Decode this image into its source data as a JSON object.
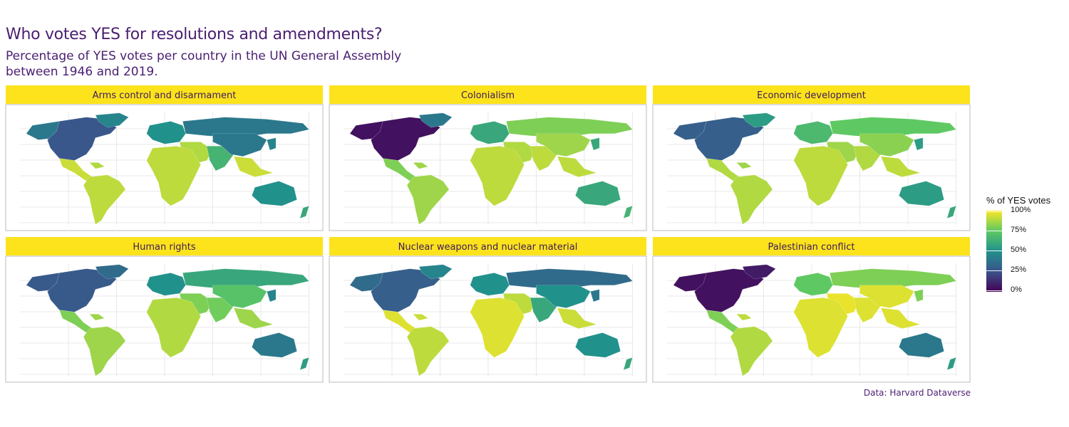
{
  "title": "Who votes YES for resolutions and amendments?",
  "subtitle": "Percentage of YES votes per country in the UN General Assembly between 1946 and 2019.",
  "caption": "Data: Harvard Dataverse",
  "legend": {
    "title": "% of YES votes",
    "labels": [
      "100%",
      "75%",
      "50%",
      "25%",
      "0%"
    ],
    "scale": "viridis"
  },
  "colors": {
    "strip": "#fce31c",
    "text": "#4a1e72",
    "ocean": "#ffffff",
    "grid": "#e3e3e3",
    "land_unknown": "#6cc85a"
  },
  "panels": [
    {
      "label": "Arms control and disarmament",
      "values": {
        "north_america": 0.27,
        "greenland": 0.45,
        "alaska": 0.4,
        "central_america": 0.92,
        "caribbean": 0.88,
        "south_america": 0.9,
        "europe": 0.5,
        "russia": 0.4,
        "middle_east": 0.88,
        "africa": 0.9,
        "south_asia": 0.65,
        "china": 0.4,
        "southeast_asia": 0.92,
        "japan": 0.45,
        "oceania": 0.5,
        "new_zealand": 0.6
      }
    },
    {
      "label": "Colonialism",
      "values": {
        "north_america": 0.05,
        "greenland": 0.4,
        "alaska": 0.05,
        "central_america": 0.8,
        "caribbean": 0.85,
        "south_america": 0.85,
        "europe": 0.6,
        "russia": 0.8,
        "middle_east": 0.88,
        "africa": 0.9,
        "south_asia": 0.9,
        "china": 0.85,
        "southeast_asia": 0.9,
        "japan": 0.6,
        "oceania": 0.6,
        "new_zealand": 0.65
      }
    },
    {
      "label": "Economic development",
      "values": {
        "north_america": 0.3,
        "greenland": 0.55,
        "alaska": 0.3,
        "central_america": 0.88,
        "caribbean": 0.85,
        "south_america": 0.88,
        "europe": 0.68,
        "russia": 0.75,
        "middle_east": 0.85,
        "africa": 0.9,
        "south_asia": 0.88,
        "china": 0.82,
        "southeast_asia": 0.9,
        "japan": 0.55,
        "oceania": 0.55,
        "new_zealand": 0.6
      }
    },
    {
      "label": "Human rights",
      "values": {
        "north_america": 0.28,
        "greenland": 0.35,
        "alaska": 0.28,
        "central_america": 0.8,
        "caribbean": 0.85,
        "south_america": 0.85,
        "europe": 0.5,
        "russia": 0.6,
        "middle_east": 0.8,
        "africa": 0.88,
        "south_asia": 0.78,
        "china": 0.72,
        "southeast_asia": 0.85,
        "japan": 0.45,
        "oceania": 0.4,
        "new_zealand": 0.55
      }
    },
    {
      "label": "Nuclear weapons and nuclear material",
      "values": {
        "north_america": 0.3,
        "greenland": 0.45,
        "alaska": 0.35,
        "central_america": 0.95,
        "caribbean": 0.92,
        "south_america": 0.9,
        "europe": 0.5,
        "russia": 0.35,
        "middle_east": 0.9,
        "africa": 0.95,
        "south_asia": 0.6,
        "china": 0.5,
        "southeast_asia": 0.92,
        "japan": 0.4,
        "oceania": 0.5,
        "new_zealand": 0.6
      }
    },
    {
      "label": "Palestinian conflict",
      "values": {
        "north_america": 0.05,
        "greenland": 0.08,
        "alaska": 0.05,
        "central_america": 0.8,
        "caribbean": 0.9,
        "south_america": 0.88,
        "europe": 0.75,
        "russia": 0.8,
        "middle_east": 0.97,
        "africa": 0.95,
        "south_asia": 0.95,
        "china": 0.95,
        "southeast_asia": 0.95,
        "japan": 0.8,
        "oceania": 0.4,
        "new_zealand": 0.55
      }
    }
  ]
}
